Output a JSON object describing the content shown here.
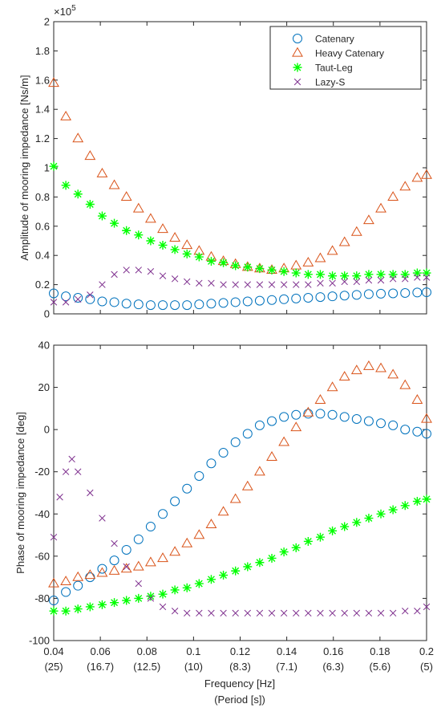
{
  "chart_data": [
    {
      "type": "scatter",
      "ylabel": "Amplitude of mooring impedance [Ns/m]",
      "xlim": [
        0.04,
        0.2
      ],
      "ylim": [
        0,
        2
      ],
      "y_exponent_label": "×10",
      "y_exponent_value": "5",
      "yticks": [
        "0",
        "0.2",
        "0.4",
        "0.6",
        "0.8",
        "1",
        "1.2",
        "1.4",
        "1.6",
        "1.8",
        "2"
      ],
      "yticks_values": [
        0,
        0.2,
        0.4,
        0.6,
        0.8,
        1.0,
        1.2,
        1.4,
        1.6,
        1.8,
        2.0
      ],
      "legend_position": "top-right",
      "grid": false,
      "series": [
        {
          "name": "Catenary",
          "marker": "circle",
          "color": "#0072BD",
          "x": [
            0.04,
            0.0452,
            0.0504,
            0.0556,
            0.0608,
            0.066,
            0.0712,
            0.0764,
            0.0816,
            0.0868,
            0.092,
            0.0972,
            0.1024,
            0.1076,
            0.1128,
            0.118,
            0.1232,
            0.1284,
            0.1336,
            0.1388,
            0.144,
            0.1492,
            0.1544,
            0.1596,
            0.1648,
            0.17,
            0.1752,
            0.1804,
            0.1856,
            0.1908,
            0.196,
            0.2
          ],
          "y": [
            0.14,
            0.12,
            0.11,
            0.1,
            0.085,
            0.08,
            0.07,
            0.065,
            0.06,
            0.06,
            0.06,
            0.06,
            0.065,
            0.07,
            0.075,
            0.08,
            0.085,
            0.09,
            0.095,
            0.1,
            0.105,
            0.11,
            0.115,
            0.12,
            0.125,
            0.13,
            0.135,
            0.138,
            0.14,
            0.143,
            0.146,
            0.148
          ]
        },
        {
          "name": "Heavy Catenary",
          "marker": "triangle",
          "color": "#D95319",
          "x": [
            0.04,
            0.0452,
            0.0504,
            0.0556,
            0.0608,
            0.066,
            0.0712,
            0.0764,
            0.0816,
            0.0868,
            0.092,
            0.0972,
            0.1024,
            0.1076,
            0.1128,
            0.118,
            0.1232,
            0.1284,
            0.1336,
            0.1388,
            0.144,
            0.1492,
            0.1544,
            0.1596,
            0.1648,
            0.17,
            0.1752,
            0.1804,
            0.1856,
            0.1908,
            0.196,
            0.2
          ],
          "y": [
            1.58,
            1.35,
            1.2,
            1.08,
            0.96,
            0.88,
            0.8,
            0.72,
            0.65,
            0.58,
            0.52,
            0.47,
            0.43,
            0.39,
            0.36,
            0.34,
            0.32,
            0.31,
            0.3,
            0.31,
            0.33,
            0.35,
            0.38,
            0.43,
            0.49,
            0.56,
            0.64,
            0.72,
            0.8,
            0.87,
            0.93,
            0.95
          ]
        },
        {
          "name": "Taut-Leg",
          "marker": "asterisk",
          "color": "#00FF00",
          "x": [
            0.04,
            0.0452,
            0.0504,
            0.0556,
            0.0608,
            0.066,
            0.0712,
            0.0764,
            0.0816,
            0.0868,
            0.092,
            0.0972,
            0.1024,
            0.1076,
            0.1128,
            0.118,
            0.1232,
            0.1284,
            0.1336,
            0.1388,
            0.144,
            0.1492,
            0.1544,
            0.1596,
            0.1648,
            0.17,
            0.1752,
            0.1804,
            0.1856,
            0.1908,
            0.196,
            0.2
          ],
          "y": [
            1.01,
            0.88,
            0.82,
            0.75,
            0.67,
            0.62,
            0.57,
            0.54,
            0.5,
            0.47,
            0.44,
            0.41,
            0.39,
            0.36,
            0.35,
            0.33,
            0.32,
            0.31,
            0.3,
            0.29,
            0.28,
            0.27,
            0.27,
            0.26,
            0.26,
            0.26,
            0.27,
            0.27,
            0.27,
            0.27,
            0.28,
            0.28
          ]
        },
        {
          "name": "Lazy-S",
          "marker": "cross",
          "color": "#7E2F8E",
          "x": [
            0.04,
            0.0452,
            0.0504,
            0.0556,
            0.0608,
            0.066,
            0.0712,
            0.0764,
            0.0816,
            0.0868,
            0.092,
            0.0972,
            0.1024,
            0.1076,
            0.1128,
            0.118,
            0.1232,
            0.1284,
            0.1336,
            0.1388,
            0.144,
            0.1492,
            0.1544,
            0.1596,
            0.1648,
            0.17,
            0.1752,
            0.1804,
            0.1856,
            0.1908,
            0.196,
            0.2
          ],
          "y": [
            0.08,
            0.08,
            0.1,
            0.13,
            0.2,
            0.27,
            0.3,
            0.3,
            0.29,
            0.26,
            0.24,
            0.22,
            0.21,
            0.21,
            0.2,
            0.2,
            0.2,
            0.2,
            0.2,
            0.2,
            0.2,
            0.2,
            0.21,
            0.21,
            0.22,
            0.22,
            0.23,
            0.23,
            0.24,
            0.24,
            0.25,
            0.25
          ]
        }
      ]
    },
    {
      "type": "scatter",
      "ylabel": "Phase of mooring impedance [deg]",
      "xlabel": "Frequency [Hz]",
      "xlabel2": "(Period [s])",
      "xlim": [
        0.04,
        0.2
      ],
      "ylim": [
        -100,
        40
      ],
      "xticks": [
        "0.04",
        "0.06",
        "0.08",
        "0.1",
        "0.12",
        "0.14",
        "0.16",
        "0.18",
        "0.2"
      ],
      "xticks_values": [
        0.04,
        0.06,
        0.08,
        0.1,
        0.12,
        0.14,
        0.16,
        0.18,
        0.2
      ],
      "xticks_period": [
        "(25)",
        "(16.7)",
        "(12.5)",
        "(10)",
        "(8.3)",
        "(7.1)",
        "(6.3)",
        "(5.6)",
        "(5)"
      ],
      "yticks": [
        "-100",
        "-80",
        "-60",
        "-40",
        "-20",
        "0",
        "20",
        "40"
      ],
      "yticks_values": [
        -100,
        -80,
        -60,
        -40,
        -20,
        0,
        20,
        40
      ],
      "grid": false,
      "series": [
        {
          "name": "Catenary",
          "marker": "circle",
          "color": "#0072BD",
          "x": [
            0.04,
            0.0452,
            0.0504,
            0.0556,
            0.0608,
            0.066,
            0.0712,
            0.0764,
            0.0816,
            0.0868,
            0.092,
            0.0972,
            0.1024,
            0.1076,
            0.1128,
            0.118,
            0.1232,
            0.1284,
            0.1336,
            0.1388,
            0.144,
            0.1492,
            0.1544,
            0.1596,
            0.1648,
            0.17,
            0.1752,
            0.1804,
            0.1856,
            0.1908,
            0.196,
            0.2
          ],
          "y": [
            -81,
            -77,
            -74,
            -70,
            -66,
            -62,
            -57,
            -52,
            -46,
            -40,
            -34,
            -28,
            -22,
            -16,
            -11,
            -6,
            -2,
            2,
            4,
            6,
            7,
            7.5,
            7.5,
            7,
            6,
            5,
            4,
            3,
            2,
            0,
            -1,
            -2
          ]
        },
        {
          "name": "Heavy Catenary",
          "marker": "triangle",
          "color": "#D95319",
          "x": [
            0.04,
            0.0452,
            0.0504,
            0.0556,
            0.0608,
            0.066,
            0.0712,
            0.0764,
            0.0816,
            0.0868,
            0.092,
            0.0972,
            0.1024,
            0.1076,
            0.1128,
            0.118,
            0.1232,
            0.1284,
            0.1336,
            0.1388,
            0.144,
            0.1492,
            0.1544,
            0.1596,
            0.1648,
            0.17,
            0.1752,
            0.1804,
            0.1856,
            0.1908,
            0.196,
            0.2
          ],
          "y": [
            -73,
            -72,
            -70,
            -69,
            -68,
            -67,
            -66,
            -65,
            -63,
            -61,
            -58,
            -54,
            -50,
            -45,
            -39,
            -33,
            -27,
            -20,
            -13,
            -6,
            1,
            8,
            14,
            20,
            25,
            28,
            30,
            29,
            26,
            21,
            14,
            5
          ]
        },
        {
          "name": "Taut-Leg",
          "marker": "asterisk",
          "color": "#00FF00",
          "x": [
            0.04,
            0.0452,
            0.0504,
            0.0556,
            0.0608,
            0.066,
            0.0712,
            0.0764,
            0.0816,
            0.0868,
            0.092,
            0.0972,
            0.1024,
            0.1076,
            0.1128,
            0.118,
            0.1232,
            0.1284,
            0.1336,
            0.1388,
            0.144,
            0.1492,
            0.1544,
            0.1596,
            0.1648,
            0.17,
            0.1752,
            0.1804,
            0.1856,
            0.1908,
            0.196,
            0.2
          ],
          "y": [
            -86,
            -86,
            -85,
            -84,
            -83,
            -82,
            -81,
            -80,
            -79,
            -78,
            -76,
            -75,
            -73,
            -71,
            -69,
            -67,
            -65,
            -63,
            -61,
            -58,
            -56,
            -53,
            -51,
            -48,
            -46,
            -44,
            -42,
            -40,
            -38,
            -36,
            -34,
            -33
          ]
        },
        {
          "name": "Lazy-S",
          "marker": "cross",
          "color": "#7E2F8E",
          "x": [
            0.04,
            0.0426,
            0.0452,
            0.0478,
            0.0504,
            0.0556,
            0.0608,
            0.066,
            0.0712,
            0.0764,
            0.0816,
            0.0868,
            0.092,
            0.0972,
            0.1024,
            0.1076,
            0.1128,
            0.118,
            0.1232,
            0.1284,
            0.1336,
            0.1388,
            0.144,
            0.1492,
            0.1544,
            0.1596,
            0.1648,
            0.17,
            0.1752,
            0.1804,
            0.1856,
            0.1908,
            0.196,
            0.2
          ],
          "y": [
            -51,
            -32,
            -20,
            -14,
            -20,
            -30,
            -42,
            -54,
            -65,
            -73,
            -80,
            -84,
            -86,
            -87,
            -87,
            -87,
            -87,
            -87,
            -87,
            -87,
            -87,
            -87,
            -87,
            -87,
            -87,
            -87,
            -87,
            -87,
            -87,
            -87,
            -87,
            -86,
            -86,
            -84
          ]
        }
      ]
    }
  ]
}
